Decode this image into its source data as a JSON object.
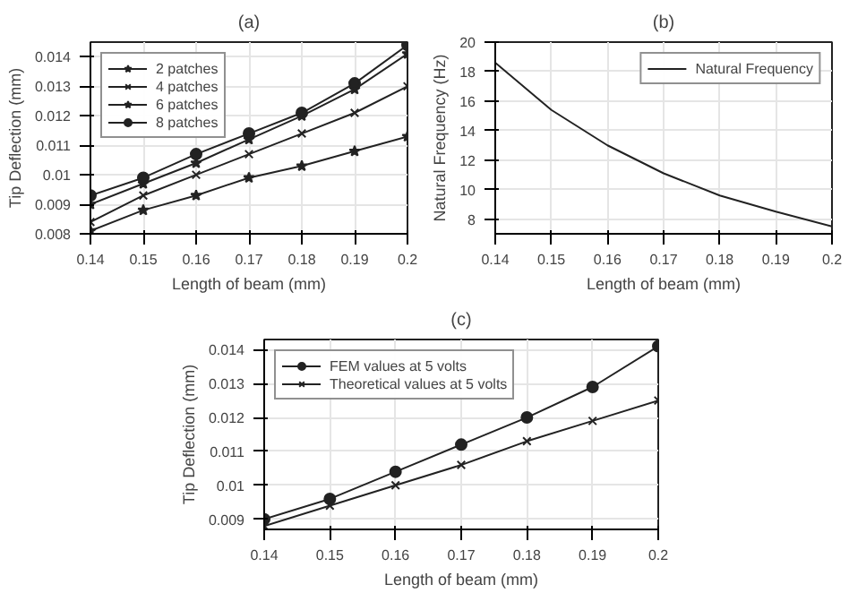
{
  "chart_data": [
    {
      "type": "line",
      "title": "(a)",
      "xlabel": "Length of beam (mm)",
      "ylabel": "Tip Deflection (mm)",
      "x": [
        0.14,
        0.15,
        0.16,
        0.17,
        0.18,
        0.19,
        0.2
      ],
      "xlim": [
        0.14,
        0.2
      ],
      "xticks": [
        0.14,
        0.15,
        0.16,
        0.17,
        0.18,
        0.19,
        0.2
      ],
      "ylim": [
        0.008,
        0.0145
      ],
      "yticks": [
        0.008,
        0.009,
        0.01,
        0.011,
        0.012,
        0.013,
        0.014
      ],
      "grid": true,
      "legend": "top left",
      "line_style": "solid",
      "series": [
        {
          "name": "2 patches",
          "color": "#222222",
          "marker": "star",
          "values": [
            0.0081,
            0.0088,
            0.0093,
            0.0099,
            0.0103,
            0.0108,
            0.0113
          ]
        },
        {
          "name": "4 patches",
          "color": "#222222",
          "marker": "cross",
          "values": [
            0.0084,
            0.0093,
            0.01,
            0.0107,
            0.0114,
            0.0121,
            0.013
          ]
        },
        {
          "name": "6 patches",
          "color": "#222222",
          "marker": "star",
          "values": [
            0.009,
            0.0097,
            0.0104,
            0.0112,
            0.012,
            0.0129,
            0.0141
          ]
        },
        {
          "name": "8 patches",
          "color": "#222222",
          "marker": "circle",
          "values": [
            0.0093,
            0.0099,
            0.0107,
            0.0114,
            0.0121,
            0.0131,
            0.0144
          ]
        }
      ]
    },
    {
      "type": "line",
      "title": "(b)",
      "xlabel": "Length of beam (mm)",
      "ylabel": "Natural Frequency (Hz)",
      "x": [
        0.14,
        0.15,
        0.16,
        0.17,
        0.18,
        0.19,
        0.2
      ],
      "xlim": [
        0.14,
        0.2
      ],
      "xticks": [
        0.14,
        0.15,
        0.16,
        0.17,
        0.18,
        0.19,
        0.2
      ],
      "ylim": [
        7,
        20
      ],
      "yticks": [
        8,
        10,
        12,
        14,
        16,
        18,
        20
      ],
      "grid": true,
      "legend": "top right",
      "line_style": "solid",
      "series": [
        {
          "name": "Natural Frequency",
          "color": "#222222",
          "marker": "none",
          "values": [
            18.6,
            15.4,
            13.0,
            11.1,
            9.6,
            8.5,
            7.5
          ]
        }
      ]
    },
    {
      "type": "line",
      "title": "(c)",
      "xlabel": "Length of beam (mm)",
      "ylabel": "Tip Deflection (mm)",
      "x": [
        0.14,
        0.15,
        0.16,
        0.17,
        0.18,
        0.19,
        0.2
      ],
      "xlim": [
        0.14,
        0.2
      ],
      "xticks": [
        0.14,
        0.15,
        0.16,
        0.17,
        0.18,
        0.19,
        0.2
      ],
      "ylim": [
        0.0087,
        0.0143
      ],
      "yticks": [
        0.009,
        0.01,
        0.011,
        0.012,
        0.013,
        0.014
      ],
      "grid": true,
      "legend": "top left",
      "line_style": "solid",
      "series": [
        {
          "name": "FEM values at 5 volts",
          "color": "#222222",
          "marker": "circle",
          "values": [
            0.009,
            0.0096,
            0.0104,
            0.0112,
            0.012,
            0.0129,
            0.0141
          ]
        },
        {
          "name": "Theoretical values at 5 volts",
          "color": "#222222",
          "marker": "cross",
          "values": [
            0.0088,
            0.0094,
            0.01,
            0.0106,
            0.0113,
            0.0119,
            0.0125
          ]
        }
      ]
    }
  ]
}
